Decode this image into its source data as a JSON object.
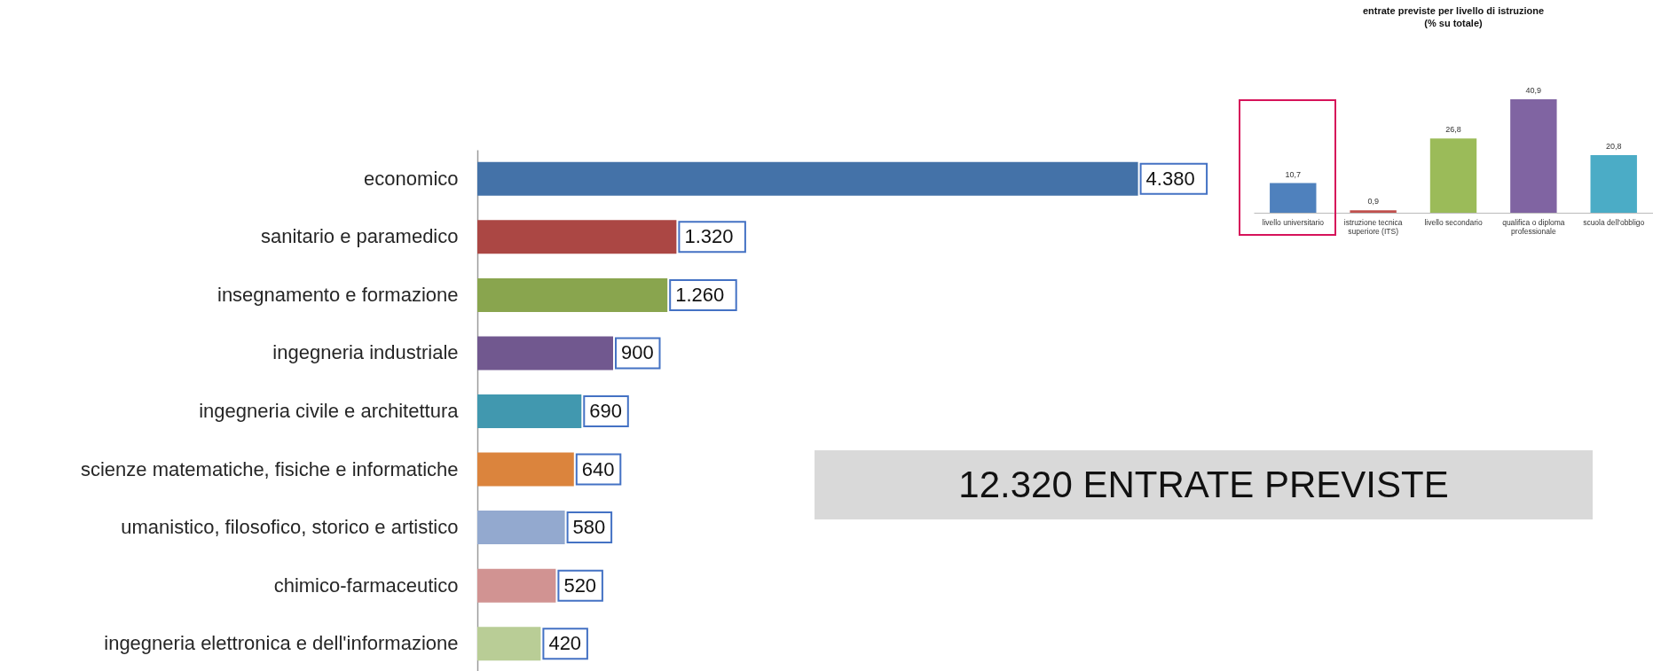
{
  "chart_data": [
    {
      "type": "bar",
      "orientation": "horizontal",
      "categories": [
        "economico",
        "sanitario e paramedico",
        "insegnamento e formazione",
        "ingegneria industriale",
        "ingegneria civile e architettura",
        "scienze matematiche, fisiche e informatiche",
        "umanistico, filosofico, storico e artistico",
        "chimico-farmaceutico",
        "ingegneria elettronica e dell'informazione"
      ],
      "values": [
        4380,
        1320,
        1260,
        900,
        690,
        640,
        580,
        520,
        420
      ],
      "value_labels": [
        "4.380",
        "1.320",
        "1.260",
        "900",
        "690",
        "640",
        "580",
        "520",
        "420"
      ],
      "colors": [
        "#4472a8",
        "#ab4744",
        "#89a54e",
        "#71588f",
        "#4198af",
        "#db843d",
        "#93a9cf",
        "#d19392",
        "#b9cd96"
      ]
    },
    {
      "type": "bar",
      "title": "entrate previste per livello di istruzione",
      "subtitle": "(% su totale)",
      "categories": [
        "livello universitario",
        "istruzione tecnica superiore (ITS)",
        "livello secondario",
        "qualifica o diploma professionale",
        "scuola dell'obbligo"
      ],
      "values": [
        10.7,
        0.9,
        26.8,
        40.9,
        20.8
      ],
      "value_labels": [
        "10,7",
        "0,9",
        "26,8",
        "40,9",
        "20,8"
      ],
      "colors": [
        "#4f81bd",
        "#c0504d",
        "#9bbb59",
        "#8064a2",
        "#4bacc6"
      ]
    },
    {
      "type": "other",
      "title": "12.320 ENTRATE PREVISTE"
    }
  ]
}
